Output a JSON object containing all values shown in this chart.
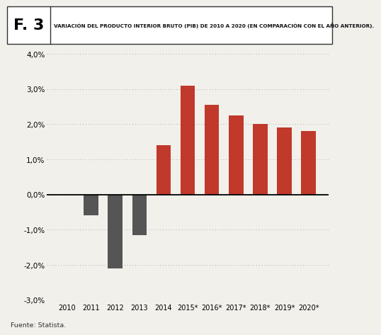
{
  "categories": [
    "2010",
    "2011",
    "2012",
    "2013",
    "2014",
    "2015*",
    "2016*",
    "2017*",
    "2018*",
    "2019*",
    "2020*"
  ],
  "values": [
    0.0,
    -0.6,
    -2.1,
    -1.15,
    1.4,
    3.1,
    2.55,
    2.25,
    2.0,
    1.9,
    1.8
  ],
  "bar_colors": [
    "#555555",
    "#555555",
    "#555555",
    "#555555",
    "#c0392b",
    "#c0392b",
    "#c0392b",
    "#c0392b",
    "#c0392b",
    "#c0392b",
    "#c0392b"
  ],
  "ylim": [
    -3.0,
    4.0
  ],
  "yticks": [
    -3.0,
    -2.0,
    -1.0,
    0.0,
    1.0,
    2.0,
    3.0,
    4.0
  ],
  "title_box_label": "F. 3",
  "title_text": "VARIACIÓN DEL PRODUCTO INTERIOR BRUTO (PIB) DE 2010 A 2020 (EN COMPARACIÓN CON EL AÑO ANTERIOR).",
  "source_text": "Fuente: Statista.",
  "background_color": "#f2f0eb",
  "bar_width": 0.6
}
